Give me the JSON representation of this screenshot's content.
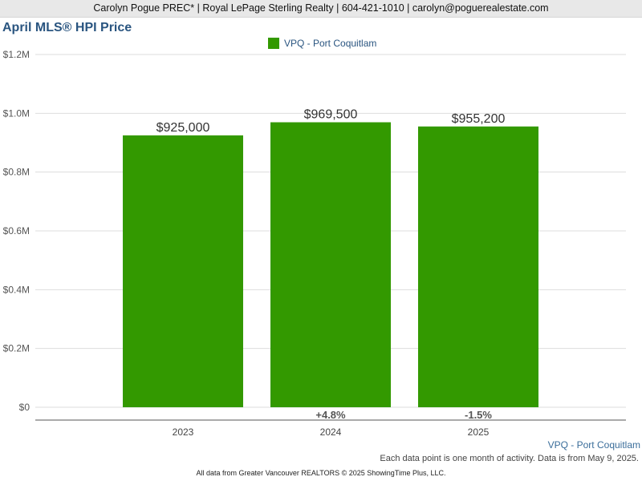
{
  "header": {
    "text": "Carolyn Pogue PREC* | Royal LePage Sterling Realty | 604-421-1010 | carolyn@poguerealestate.com"
  },
  "chart_data": {
    "type": "bar",
    "title": "April MLS® HPI Price",
    "categories": [
      "2023",
      "2024",
      "2025"
    ],
    "series": [
      {
        "name": "VPQ - Port Coquitlam",
        "values": [
          925000,
          969500,
          955200
        ],
        "color": "#339900"
      }
    ],
    "data_labels": [
      "$925,000",
      "$969,500",
      "$955,200"
    ],
    "change_labels": [
      "",
      "+4.8%",
      "-1.5%"
    ],
    "ylim": [
      0,
      1200000
    ],
    "yticks": [
      0,
      200000,
      400000,
      600000,
      800000,
      1000000,
      1200000
    ],
    "ytick_labels": [
      "$0",
      "$0.2M",
      "$0.4M",
      "$0.6M",
      "$0.8M",
      "$1.0M",
      "$1.2M"
    ],
    "grid": true,
    "legend_position": "top-center",
    "xlabel": "",
    "ylabel": ""
  },
  "footer": {
    "series_label": "VPQ - Port Coquitlam",
    "note": "Each data point is one month of activity. Data is from May 9, 2025.",
    "credit": "All data from Greater Vancouver REALTORS © 2025 ShowingTime Plus, LLC."
  }
}
